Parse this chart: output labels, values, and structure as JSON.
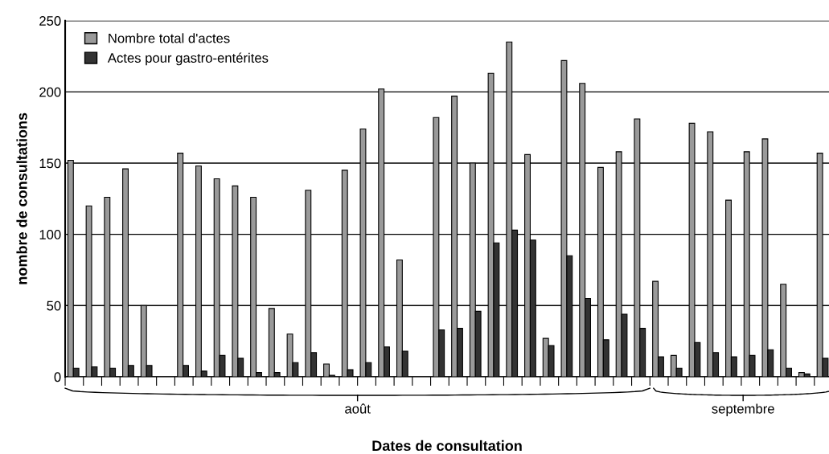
{
  "chart_data": {
    "type": "bar",
    "xlabel": "Dates de consultation",
    "ylabel": "nombre de consultations",
    "categories": [
      null,
      null,
      null,
      null,
      null,
      null,
      null,
      null,
      null,
      null,
      null,
      null,
      null,
      null,
      null,
      null,
      null,
      null,
      null,
      null,
      null,
      null,
      null,
      null,
      null,
      null,
      null,
      null,
      null,
      null,
      null,
      null,
      null,
      null,
      null,
      null,
      null,
      null,
      null,
      null,
      null,
      null
    ],
    "series": [
      {
        "name": "Nombre total d'actes",
        "color": "#9a9a9a",
        "values": [
          152,
          120,
          126,
          146,
          50,
          null,
          157,
          148,
          139,
          134,
          126,
          48,
          30,
          131,
          9,
          145,
          174,
          202,
          82,
          null,
          182,
          197,
          150,
          213,
          235,
          156,
          27,
          222,
          206,
          147,
          158,
          181,
          67,
          15,
          178,
          172,
          124,
          158,
          167,
          65,
          3,
          157
        ]
      },
      {
        "name": "Actes pour gastro-entérites",
        "color": "#333333",
        "values": [
          6,
          7,
          6,
          8,
          8,
          null,
          8,
          4,
          15,
          13,
          3,
          3,
          10,
          17,
          1,
          5,
          10,
          21,
          18,
          null,
          33,
          34,
          46,
          94,
          103,
          96,
          22,
          85,
          55,
          26,
          44,
          34,
          14,
          6,
          24,
          17,
          14,
          15,
          19,
          6,
          2,
          13
        ]
      }
    ],
    "ylim": [
      0,
      250
    ],
    "yticks": [
      0,
      50,
      100,
      150,
      200,
      250
    ],
    "grid": "y",
    "legend": "top left",
    "annotations": [
      "août",
      "septembre"
    ]
  }
}
